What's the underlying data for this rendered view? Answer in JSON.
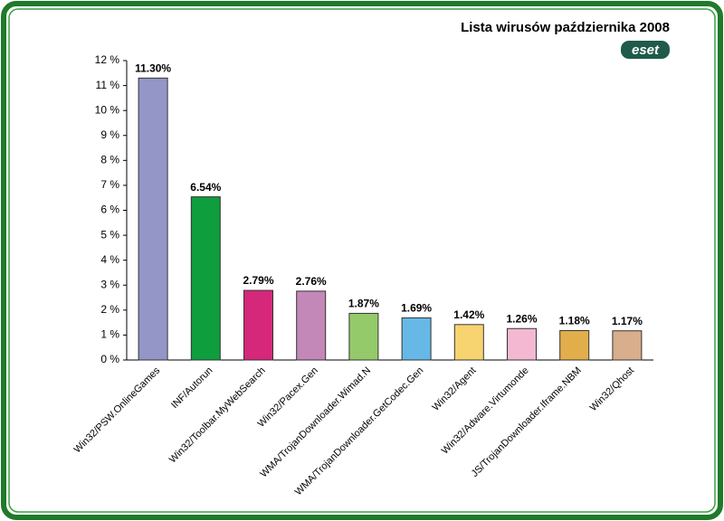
{
  "chart_data": {
    "type": "bar",
    "title": "Lista wirusów października 2008",
    "logo": "eset",
    "categories": [
      "Win32/PSW.OnlineGames",
      "INF/Autorun",
      "Win32/Toolbar.MyWebSearch",
      "Win32/Pacex.Gen",
      "WMA/TrojanDownloader.Wimad.N",
      "WMA/TrojanDownloader.GetCodec.Gen",
      "Win32/Agent",
      "Win32/Adware.Virtumonde",
      "JS/TrojanDownloader.Iframe.NBM",
      "Win32/Qhost"
    ],
    "values": [
      11.3,
      6.54,
      2.79,
      2.76,
      1.87,
      1.69,
      1.42,
      1.26,
      1.18,
      1.17
    ],
    "value_labels": [
      "11.30%",
      "6.54%",
      "2.79%",
      "2.76%",
      "1.87%",
      "1.69%",
      "1.42%",
      "1.26%",
      "1.18%",
      "1.17%"
    ],
    "colors": [
      "#9396c6",
      "#0e9e3e",
      "#d6287a",
      "#c488b8",
      "#94ca6a",
      "#66b8e6",
      "#f8d470",
      "#f4b8d2",
      "#e2ae4c",
      "#d8ae8c"
    ],
    "ylim": [
      0,
      12
    ],
    "yticks": [
      {
        "value": 0,
        "label": "0 %"
      },
      {
        "value": 1,
        "label": "1 %"
      },
      {
        "value": 2,
        "label": "2 %"
      },
      {
        "value": 3,
        "label": "3 %"
      },
      {
        "value": 4,
        "label": "4 %"
      },
      {
        "value": 5,
        "label": "5 %"
      },
      {
        "value": 6,
        "label": "6 %"
      },
      {
        "value": 7,
        "label": "7 %"
      },
      {
        "value": 8,
        "label": "8 %"
      },
      {
        "value": 9,
        "label": "9 %"
      },
      {
        "value": 10,
        "label": "10 %"
      },
      {
        "value": 11,
        "label": "11 %"
      },
      {
        "value": 12,
        "label": "12 %"
      }
    ]
  }
}
